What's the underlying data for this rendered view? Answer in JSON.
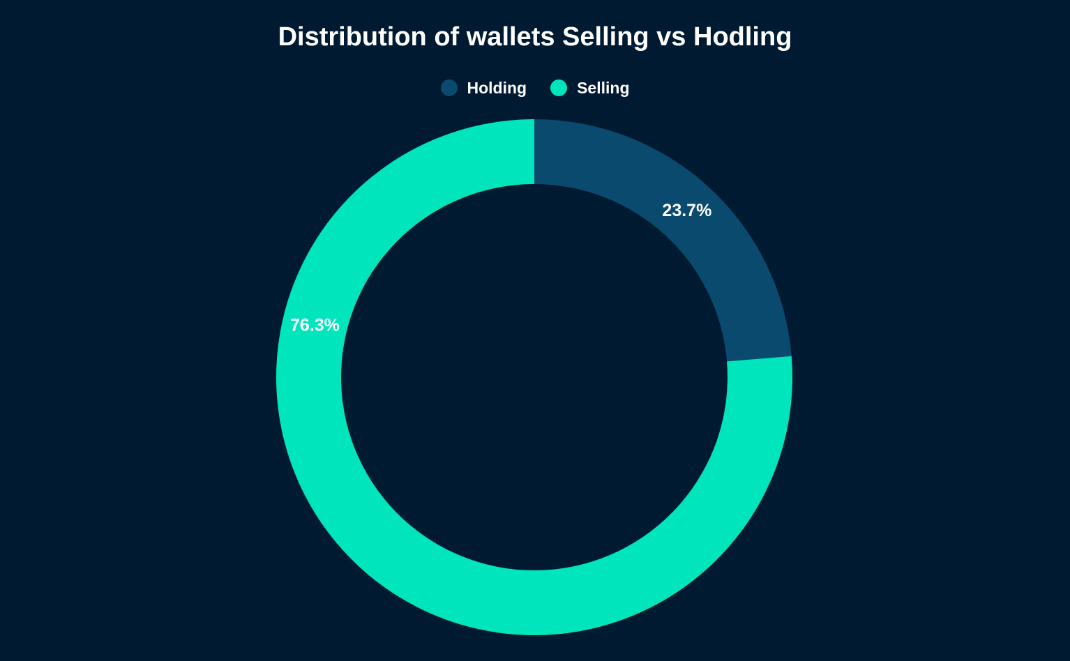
{
  "chart_data": {
    "type": "pie",
    "donut": true,
    "title": "Distribution of wallets Selling vs Hodling",
    "legend_position": "top",
    "slices": [
      {
        "name": "Holding",
        "value": 23.7,
        "label": "23.7%",
        "color": "#0b4a6f"
      },
      {
        "name": "Selling",
        "value": 76.3,
        "label": "76.3%",
        "color": "#00e5bc"
      }
    ]
  },
  "colors": {
    "background": "#001b31",
    "text": "#ffffff"
  }
}
